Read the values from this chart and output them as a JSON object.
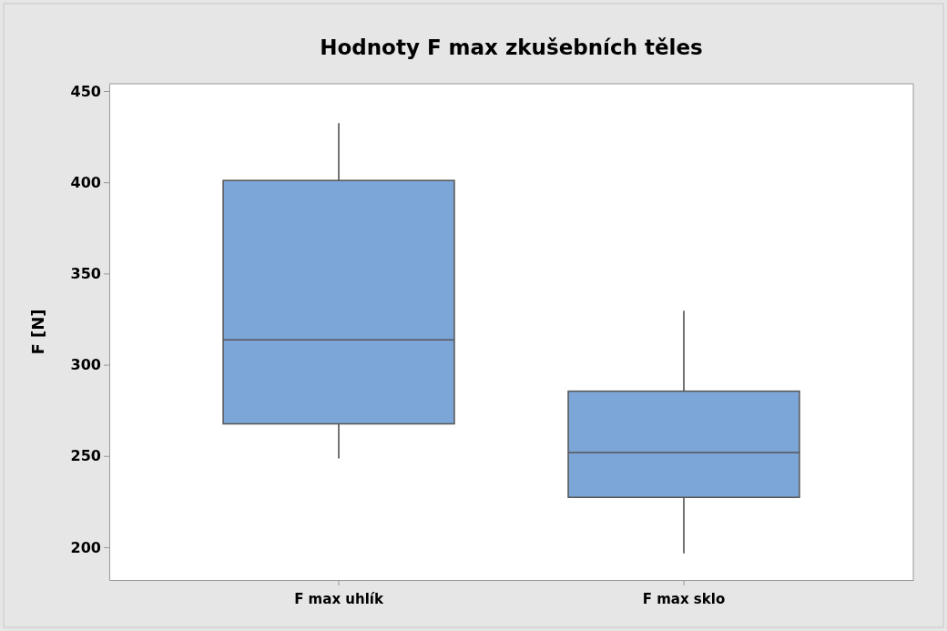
{
  "chart_data": {
    "type": "box",
    "title": "Hodnoty F max zkušebních těles",
    "ylabel": "F [N]",
    "categories": [
      "F max uhlík",
      "F max sklo"
    ],
    "boxes": [
      {
        "low": 248.6,
        "q1": 267.6,
        "median": 313.6,
        "q3": 401,
        "high": 432.4
      },
      {
        "low": 196.6,
        "q1": 227.3,
        "median": 251.9,
        "q3": 285.5,
        "high": 329.6
      }
    ],
    "color": "#7ca6d8",
    "ylim": [
      182,
      454
    ],
    "yticks": [
      200,
      250,
      300,
      350,
      400,
      450
    ],
    "grid": false
  }
}
